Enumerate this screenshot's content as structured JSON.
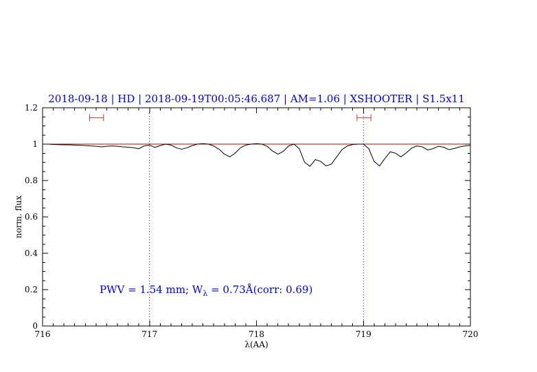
{
  "header": {
    "title": "2018-09-18 | HD | 2018-09-19T00:05:46.687 | AM=1.06 | XSHOOTER | S1.5x11"
  },
  "annotation": {
    "prefix": "PWV = 1.54 mm; W",
    "sub": "λ",
    "suffix": " = 0.73Å(corr: 0.69)"
  },
  "colors": {
    "title_blue": "#0000cd",
    "annotation_blue": "#0000cd",
    "continuum_red": "#cc0000",
    "marker_red": "#cc3333",
    "vline_blue": "#00008b",
    "spectrum_black": "#000000"
  },
  "chart_data": {
    "type": "line",
    "title": "2018-09-18 | HD | 2018-09-19T00:05:46.687 | AM=1.06 | XSHOOTER | S1.5x11",
    "xlabel": "λ(AA)",
    "ylabel": "norm. flux",
    "xlim": [
      716,
      720
    ],
    "ylim": [
      0,
      1.2
    ],
    "grid": "off",
    "legend": "none",
    "x_tick_values": [
      716,
      717,
      718,
      719,
      720
    ],
    "x_tick_labels": [
      "716",
      "717",
      "718",
      "719",
      "720"
    ],
    "y_tick_values": [
      0,
      0.2,
      0.4,
      0.6,
      0.8,
      1,
      1.2
    ],
    "y_tick_labels": [
      "0",
      "0.2",
      "0.4",
      "0.6",
      "0.8",
      "1",
      "1.2"
    ],
    "x_minor_step": 0.1,
    "y_minor_step": 0.05,
    "vlines": [
      717,
      719
    ],
    "vline_style": "dotted",
    "continuum": {
      "y": 1.0
    },
    "range_markers": [
      {
        "x_start": 716.44,
        "x_end": 716.57,
        "y": 1.145
      },
      {
        "x_start": 718.94,
        "x_end": 719.07,
        "y": 1.145
      }
    ],
    "series": [
      {
        "name": "telluric-spectrum",
        "x": [
          716.0,
          716.05,
          716.1,
          716.15,
          716.2,
          716.25,
          716.3,
          716.35,
          716.4,
          716.45,
          716.5,
          716.55,
          716.6,
          716.65,
          716.7,
          716.75,
          716.8,
          716.85,
          716.9,
          716.95,
          717.0,
          717.05,
          717.1,
          717.15,
          717.2,
          717.25,
          717.3,
          717.35,
          717.4,
          717.45,
          717.5,
          717.55,
          717.6,
          717.65,
          717.7,
          717.75,
          717.8,
          717.85,
          717.9,
          717.95,
          718.0,
          718.05,
          718.1,
          718.15,
          718.2,
          718.25,
          718.3,
          718.35,
          718.4,
          718.45,
          718.5,
          718.55,
          718.6,
          718.65,
          718.7,
          718.75,
          718.8,
          718.85,
          718.9,
          718.95,
          719.0,
          719.05,
          719.1,
          719.15,
          719.2,
          719.25,
          719.3,
          719.35,
          719.4,
          719.45,
          719.5,
          719.55,
          719.6,
          719.65,
          719.7,
          719.75,
          719.8,
          719.85,
          719.9,
          719.95,
          720.0
        ],
        "y": [
          1.0,
          1.0,
          0.998,
          0.997,
          0.996,
          0.996,
          0.995,
          0.994,
          0.992,
          0.99,
          0.988,
          0.985,
          0.988,
          0.99,
          0.988,
          0.985,
          0.983,
          0.98,
          0.975,
          0.99,
          0.995,
          0.982,
          0.992,
          1.0,
          0.995,
          0.98,
          0.972,
          0.98,
          0.992,
          1.0,
          1.003,
          1.0,
          0.99,
          0.972,
          0.945,
          0.93,
          0.95,
          0.98,
          0.995,
          1.0,
          1.003,
          1.0,
          0.988,
          0.962,
          0.945,
          0.96,
          0.99,
          1.0,
          0.975,
          0.9,
          0.878,
          0.915,
          0.905,
          0.88,
          0.89,
          0.93,
          0.97,
          0.99,
          0.998,
          1.0,
          1.0,
          0.975,
          0.905,
          0.88,
          0.92,
          0.958,
          0.95,
          0.93,
          0.952,
          0.978,
          0.99,
          0.985,
          0.968,
          0.975,
          0.988,
          0.983,
          0.97,
          0.976,
          0.985,
          0.99,
          0.993
        ]
      }
    ]
  }
}
